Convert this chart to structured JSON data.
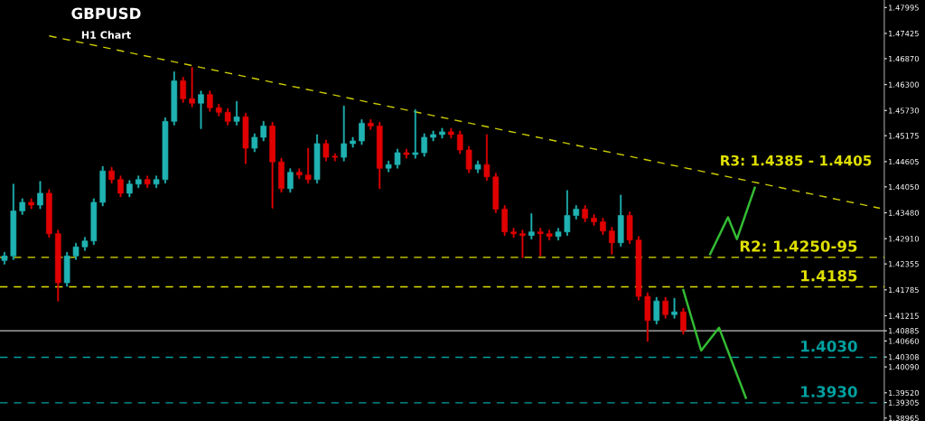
{
  "chart_data": {
    "type": "candlestick",
    "title": "GBPUSD",
    "subtitle": "H1 Chart",
    "categories": [
      null,
      null,
      null,
      null,
      null,
      null,
      null,
      null,
      null,
      null,
      null,
      null,
      null,
      null,
      null,
      null,
      null,
      null,
      null,
      null,
      null,
      null,
      null,
      null,
      null,
      null,
      null,
      null,
      null,
      null,
      null,
      null,
      null,
      null,
      null,
      null,
      null,
      null,
      null,
      null,
      null,
      null,
      null,
      null,
      null,
      null,
      null,
      null,
      null,
      null,
      null,
      null,
      null,
      null,
      null,
      null,
      null,
      null,
      null,
      null,
      null,
      null,
      null,
      null,
      null,
      null,
      null,
      null,
      null,
      null,
      null,
      null,
      null,
      null,
      null,
      null,
      null,
      null,
      null,
      null,
      null,
      null,
      null,
      null,
      null,
      null,
      null,
      null,
      null,
      null,
      null,
      null,
      null,
      null,
      null,
      null,
      null,
      null,
      null
    ],
    "ohlc": [
      [
        1.4243,
        1.4261,
        1.4235,
        1.4253
      ],
      [
        1.4253,
        1.4411,
        1.4245,
        1.4352
      ],
      [
        1.4352,
        1.4379,
        1.4344,
        1.4371
      ],
      [
        1.4371,
        1.4379,
        1.4357,
        1.4365
      ],
      [
        1.4365,
        1.4417,
        1.4357,
        1.4391
      ],
      [
        1.4391,
        1.4399,
        1.4294,
        1.4302
      ],
      [
        1.4302,
        1.431,
        1.4154,
        1.4194
      ],
      [
        1.4194,
        1.4261,
        1.4186,
        1.4253
      ],
      [
        1.4253,
        1.4281,
        1.4245,
        1.4273
      ],
      [
        1.4273,
        1.4294,
        1.4265,
        1.4286
      ],
      [
        1.4286,
        1.4379,
        1.4278,
        1.4371
      ],
      [
        1.4371,
        1.445,
        1.4363,
        1.444
      ],
      [
        1.444,
        1.4448,
        1.4413,
        1.4421
      ],
      [
        1.4421,
        1.4429,
        1.4383,
        1.4391
      ],
      [
        1.4391,
        1.4419,
        1.4383,
        1.4411
      ],
      [
        1.4411,
        1.4429,
        1.4403,
        1.4421
      ],
      [
        1.4421,
        1.4429,
        1.4403,
        1.4411
      ],
      [
        1.4411,
        1.4429,
        1.4403,
        1.4421
      ],
      [
        1.4421,
        1.4557,
        1.4413,
        1.4549
      ],
      [
        1.4549,
        1.4658,
        1.4541,
        1.4638
      ],
      [
        1.4638,
        1.4646,
        1.4591,
        1.4599
      ],
      [
        1.4599,
        1.4668,
        1.4581,
        1.4589
      ],
      [
        1.4589,
        1.4616,
        1.4533,
        1.4608
      ],
      [
        1.4608,
        1.4616,
        1.4571,
        1.4579
      ],
      [
        1.4579,
        1.4587,
        1.4561,
        1.4569
      ],
      [
        1.4569,
        1.4577,
        1.4541,
        1.4549
      ],
      [
        1.4549,
        1.4593,
        1.4541,
        1.4559
      ],
      [
        1.4559,
        1.4567,
        1.4456,
        1.449
      ],
      [
        1.449,
        1.4522,
        1.4482,
        1.4514
      ],
      [
        1.4514,
        1.4549,
        1.4506,
        1.4539
      ],
      [
        1.4539,
        1.4547,
        1.4358,
        1.446
      ],
      [
        1.446,
        1.4468,
        1.4393,
        1.4401
      ],
      [
        1.4401,
        1.4445,
        1.4393,
        1.4437
      ],
      [
        1.4437,
        1.4445,
        1.4423,
        1.4431
      ],
      [
        1.4431,
        1.449,
        1.4413,
        1.4421
      ],
      [
        1.4421,
        1.452,
        1.4413,
        1.45
      ],
      [
        1.45,
        1.4508,
        1.4462,
        1.447
      ],
      [
        1.447,
        1.4478,
        1.4462,
        1.447
      ],
      [
        1.447,
        1.4583,
        1.4462,
        1.45
      ],
      [
        1.45,
        1.4514,
        1.4492,
        1.4506
      ],
      [
        1.4506,
        1.4553,
        1.4498,
        1.4545
      ],
      [
        1.4545,
        1.4553,
        1.4531,
        1.4539
      ],
      [
        1.4539,
        1.4547,
        1.4401,
        1.4446
      ],
      [
        1.4446,
        1.4462,
        1.4438,
        1.4454
      ],
      [
        1.4454,
        1.4488,
        1.4446,
        1.448
      ],
      [
        1.448,
        1.4488,
        1.4468,
        1.4476
      ],
      [
        1.4476,
        1.4575,
        1.4468,
        1.448
      ],
      [
        1.448,
        1.4522,
        1.4472,
        1.4514
      ],
      [
        1.4514,
        1.4528,
        1.4506,
        1.452
      ],
      [
        1.452,
        1.4534,
        1.4512,
        1.4526
      ],
      [
        1.4526,
        1.4534,
        1.4512,
        1.452
      ],
      [
        1.452,
        1.4528,
        1.4478,
        1.4486
      ],
      [
        1.4486,
        1.4494,
        1.4436,
        1.4444
      ],
      [
        1.4444,
        1.4462,
        1.4436,
        1.4454
      ],
      [
        1.4454,
        1.452,
        1.4419,
        1.4427
      ],
      [
        1.4427,
        1.4435,
        1.4348,
        1.4356
      ],
      [
        1.4356,
        1.4364,
        1.4298,
        1.4306
      ],
      [
        1.4306,
        1.4314,
        1.4294,
        1.4302
      ],
      [
        1.4302,
        1.431,
        1.4249,
        1.4298
      ],
      [
        1.4298,
        1.4346,
        1.429,
        1.4306
      ],
      [
        1.4306,
        1.4314,
        1.4253,
        1.4302
      ],
      [
        1.4302,
        1.431,
        1.4288,
        1.4296
      ],
      [
        1.4296,
        1.4314,
        1.4288,
        1.4306
      ],
      [
        1.4306,
        1.4397,
        1.4298,
        1.4342
      ],
      [
        1.4342,
        1.4364,
        1.4334,
        1.4356
      ],
      [
        1.4356,
        1.4364,
        1.4328,
        1.4336
      ],
      [
        1.4336,
        1.4344,
        1.432,
        1.4328
      ],
      [
        1.4328,
        1.4336,
        1.43,
        1.4308
      ],
      [
        1.4308,
        1.4316,
        1.4257,
        1.4282
      ],
      [
        1.4282,
        1.4387,
        1.4274,
        1.4342
      ],
      [
        1.4342,
        1.435,
        1.428,
        1.4288
      ],
      [
        1.4288,
        1.4296,
        1.4156,
        1.4164
      ],
      [
        1.4164,
        1.4172,
        1.4065,
        1.4111
      ],
      [
        1.4111,
        1.4162,
        1.4103,
        1.4154
      ],
      [
        1.4154,
        1.4162,
        1.4116,
        1.4124
      ],
      [
        1.4124,
        1.416,
        1.4116,
        1.413
      ],
      [
        1.413,
        1.4138,
        1.4081,
        1.4089
      ],
      null,
      null,
      null,
      null,
      null,
      null,
      null,
      null,
      null,
      null,
      null,
      null,
      null,
      null,
      null,
      null,
      null,
      null,
      null,
      null,
      null,
      null
    ],
    "colors": [
      "#20b2b2",
      "#20b2b2",
      "#20b2b2",
      "#e00000",
      "#20b2b2",
      "#e00000",
      "#e00000",
      "#20b2b2",
      "#20b2b2",
      "#20b2b2",
      "#20b2b2",
      "#20b2b2",
      "#e00000",
      "#e00000",
      "#20b2b2",
      "#20b2b2",
      "#e00000",
      "#20b2b2",
      "#20b2b2",
      "#20b2b2",
      "#e00000",
      "#e00000",
      "#20b2b2",
      "#e00000",
      "#e00000",
      "#e00000",
      "#20b2b2",
      "#e00000",
      "#20b2b2",
      "#20b2b2",
      "#e00000",
      "#e00000",
      "#20b2b2",
      "#e00000",
      "#e00000",
      "#20b2b2",
      "#e00000",
      "#e00000",
      "#20b2b2",
      "#20b2b2",
      "#20b2b2",
      "#e00000",
      "#e00000",
      "#20b2b2",
      "#20b2b2",
      "#e00000",
      "#20b2b2",
      "#20b2b2",
      "#20b2b2",
      "#20b2b2",
      "#e00000",
      "#e00000",
      "#e00000",
      "#20b2b2",
      "#e00000",
      "#e00000",
      "#e00000",
      "#e00000",
      "#e00000",
      "#20b2b2",
      "#e00000",
      "#e00000",
      "#20b2b2",
      "#20b2b2",
      "#20b2b2",
      "#e00000",
      "#e00000",
      "#e00000",
      "#e00000",
      "#20b2b2",
      "#e00000",
      "#e00000",
      "#e00000",
      "#20b2b2",
      "#e00000",
      "#20b2b2",
      "#e00000",
      null,
      null,
      null,
      null,
      null,
      null,
      null,
      null,
      null,
      null,
      null,
      null,
      null,
      null,
      null,
      null,
      null,
      null,
      null,
      null,
      null,
      null
    ],
    "series": [
      {
        "type": "line",
        "values": [
          null,
          null,
          null,
          null,
          null,
          1.4737,
          null,
          null,
          null,
          null,
          null,
          null,
          null,
          null,
          null,
          null,
          null,
          null,
          null,
          null,
          null,
          null,
          null,
          null,
          null,
          null,
          null,
          null,
          null,
          null,
          null,
          null,
          null,
          null,
          null,
          null,
          null,
          null,
          null,
          null,
          null,
          null,
          null,
          null,
          null,
          null,
          null,
          null,
          null,
          null,
          null,
          null,
          null,
          null,
          null,
          null,
          null,
          null,
          null,
          null,
          null,
          null,
          null,
          null,
          null,
          null,
          null,
          null,
          null,
          null,
          null,
          null,
          null,
          null,
          null,
          null,
          null,
          null,
          null,
          null,
          null,
          null,
          null,
          null,
          null,
          null,
          null,
          null,
          null,
          null,
          null,
          null,
          null,
          null,
          null,
          null,
          null,
          null,
          1.4358
        ],
        "color": "#cccc00",
        "line_style": "dashed"
      },
      {
        "type": "line",
        "values": [
          null,
          null,
          null,
          null,
          null,
          null,
          null,
          null,
          null,
          null,
          null,
          null,
          null,
          null,
          null,
          null,
          null,
          null,
          null,
          null,
          null,
          null,
          null,
          null,
          null,
          null,
          null,
          null,
          null,
          null,
          null,
          null,
          null,
          null,
          null,
          null,
          null,
          null,
          null,
          null,
          null,
          null,
          null,
          null,
          null,
          null,
          null,
          null,
          null,
          null,
          null,
          null,
          null,
          null,
          null,
          null,
          null,
          null,
          null,
          null,
          null,
          null,
          null,
          null,
          null,
          null,
          null,
          null,
          null,
          null,
          null,
          null,
          null,
          null,
          null,
          null,
          null,
          null,
          null,
          1.4257,
          null,
          1.4338,
          1.429,
          null,
          1.4403,
          null,
          null,
          null,
          null,
          null,
          null,
          null,
          null,
          null,
          null,
          null,
          null,
          null,
          null
        ],
        "color": "#33bb33",
        "line_style": "solid"
      },
      {
        "type": "line",
        "values": [
          null,
          null,
          null,
          null,
          null,
          null,
          null,
          null,
          null,
          null,
          null,
          null,
          null,
          null,
          null,
          null,
          null,
          null,
          null,
          null,
          null,
          null,
          null,
          null,
          null,
          null,
          null,
          null,
          null,
          null,
          null,
          null,
          null,
          null,
          null,
          null,
          null,
          null,
          null,
          null,
          null,
          null,
          null,
          null,
          null,
          null,
          null,
          null,
          null,
          null,
          null,
          null,
          null,
          null,
          null,
          null,
          null,
          null,
          null,
          null,
          null,
          null,
          null,
          null,
          null,
          null,
          null,
          null,
          null,
          null,
          null,
          null,
          null,
          null,
          null,
          null,
          1.4178,
          null,
          1.4045,
          null,
          1.4095,
          null,
          null,
          1.3941,
          null,
          null,
          null,
          null,
          null,
          null,
          null,
          null,
          null,
          null,
          null,
          null,
          null,
          null,
          null
        ],
        "color": "#33bb33",
        "line_style": "solid"
      }
    ],
    "ref_lines": [
      {
        "axis": "y",
        "value": 1.40885,
        "color": "#c0c0c0",
        "line_style": "solid"
      },
      {
        "axis": "y",
        "value": 1.425,
        "label": "R2: 1.4250-95",
        "color": "#e0e000",
        "line_style": "dashed"
      },
      {
        "axis": "y",
        "value": 1.4185,
        "label": "1.4185",
        "color": "#e0e000",
        "line_style": "dashed"
      },
      {
        "axis": "y",
        "value": 1.403,
        "label": "1.4030",
        "color": "#00a0a0",
        "line_style": "dashed"
      },
      {
        "axis": "y",
        "value": 1.393,
        "label": "1.3930",
        "color": "#00a0a0",
        "line_style": "dashed"
      }
    ],
    "annotations": [
      "R3: 1.4385 - 1.4405"
    ],
    "ylim": [
      1.389,
      1.4816
    ],
    "yticks": [
      {
        "value": 1.47995,
        "label": "1.47995"
      },
      {
        "value": 1.47425,
        "label": "1.47425"
      },
      {
        "value": 1.4687,
        "label": "1.46870"
      },
      {
        "value": 1.463,
        "label": "1.46300"
      },
      {
        "value": 1.4573,
        "label": "1.45730"
      },
      {
        "value": 1.45175,
        "label": "1.45175"
      },
      {
        "value": 1.44605,
        "label": "1.44605"
      },
      {
        "value": 1.4405,
        "label": "1.44050"
      },
      {
        "value": 1.4348,
        "label": "1.43480"
      },
      {
        "value": 1.4291,
        "label": "1.42910"
      },
      {
        "value": 1.42355,
        "label": "1.42355"
      },
      {
        "value": 1.41785,
        "label": "1.41785"
      },
      {
        "value": 1.41215,
        "label": "1.41215"
      },
      {
        "value": 1.40885,
        "label": "1.40885"
      },
      {
        "value": 1.4066,
        "label": "1.40660"
      },
      {
        "value": 1.40308,
        "label": "1.40308"
      },
      {
        "value": 1.4009,
        "label": "1.40090"
      },
      {
        "value": 1.3952,
        "label": "1.39520"
      },
      {
        "value": 1.39305,
        "label": "1.39305"
      },
      {
        "value": 1.38965,
        "label": "1.38965"
      }
    ],
    "tick_labels": "y",
    "grid": false,
    "legend": false
  }
}
